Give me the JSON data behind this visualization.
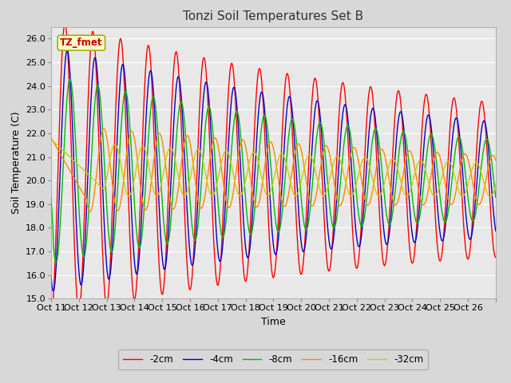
{
  "title": "Tonzi Soil Temperatures Set B",
  "xlabel": "Time",
  "ylabel": "Soil Temperature (C)",
  "ylim": [
    15.0,
    26.5
  ],
  "yticks": [
    15.0,
    16.0,
    17.0,
    18.0,
    19.0,
    20.0,
    21.0,
    22.0,
    23.0,
    24.0,
    25.0,
    26.0
  ],
  "series": [
    "-2cm",
    "-4cm",
    "-8cm",
    "-16cm",
    "-32cm"
  ],
  "colors": [
    "#ff0000",
    "#0000cc",
    "#00bb00",
    "#ff8800",
    "#cccc00"
  ],
  "legend_label": "TZ_fmet",
  "bg_color": "#d8d8d8",
  "plot_bg_color": "#e8e8e8",
  "grid_color": "#ffffff",
  "n_points": 960,
  "x_start": 10.0,
  "x_end": 26.0,
  "xtick_positions": [
    10,
    11,
    12,
    13,
    14,
    15,
    16,
    17,
    18,
    19,
    20,
    21,
    22,
    23,
    24,
    25,
    26
  ],
  "xtick_labels": [
    "Oct 11",
    "Oct 12",
    "Oct 13",
    "Oct 14",
    "Oct 15",
    "Oct 16",
    "Oct 17",
    "Oct 18",
    "Oct 19",
    "Oct 20",
    "Oct 21",
    "Oct 22",
    "Oct 23",
    "Oct 24",
    "Oct 25",
    "Oct 26",
    ""
  ]
}
